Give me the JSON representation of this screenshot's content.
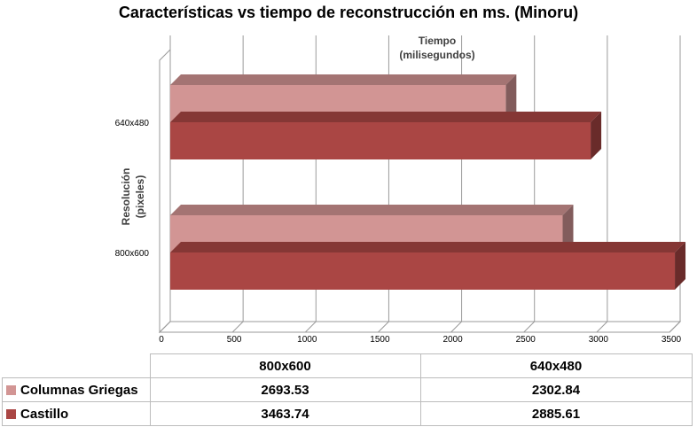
{
  "chart_data": {
    "type": "bar",
    "orientation": "horizontal",
    "three_d": true,
    "title": "Características vs tiempo de reconstrucción en ms. (Minoru)",
    "xlabel": "Tiempo (milisegundos)",
    "ylabel": "Resolución (pixeles)",
    "xlim": [
      0,
      3500
    ],
    "xticks": [
      "0",
      "500",
      "1000",
      "1500",
      "2000",
      "2500",
      "3000",
      "3500"
    ],
    "categories": [
      "800x600",
      "640x480"
    ],
    "series": [
      {
        "name": "Columnas Griegas",
        "values": [
          2693.53,
          2302.84
        ],
        "color": "#d29594"
      },
      {
        "name": "Castillo",
        "values": [
          3463.74,
          2885.61
        ],
        "color": "#aa4644"
      }
    ],
    "grid": true,
    "legend": "data table"
  },
  "table": {
    "headers": [
      "800x600",
      "640x480"
    ],
    "rows": [
      {
        "label": "Columnas Griegas",
        "values": [
          "2693.53",
          "2302.84"
        ]
      },
      {
        "label": "Castillo",
        "values": [
          "3463.74",
          "2885.61"
        ]
      }
    ]
  }
}
